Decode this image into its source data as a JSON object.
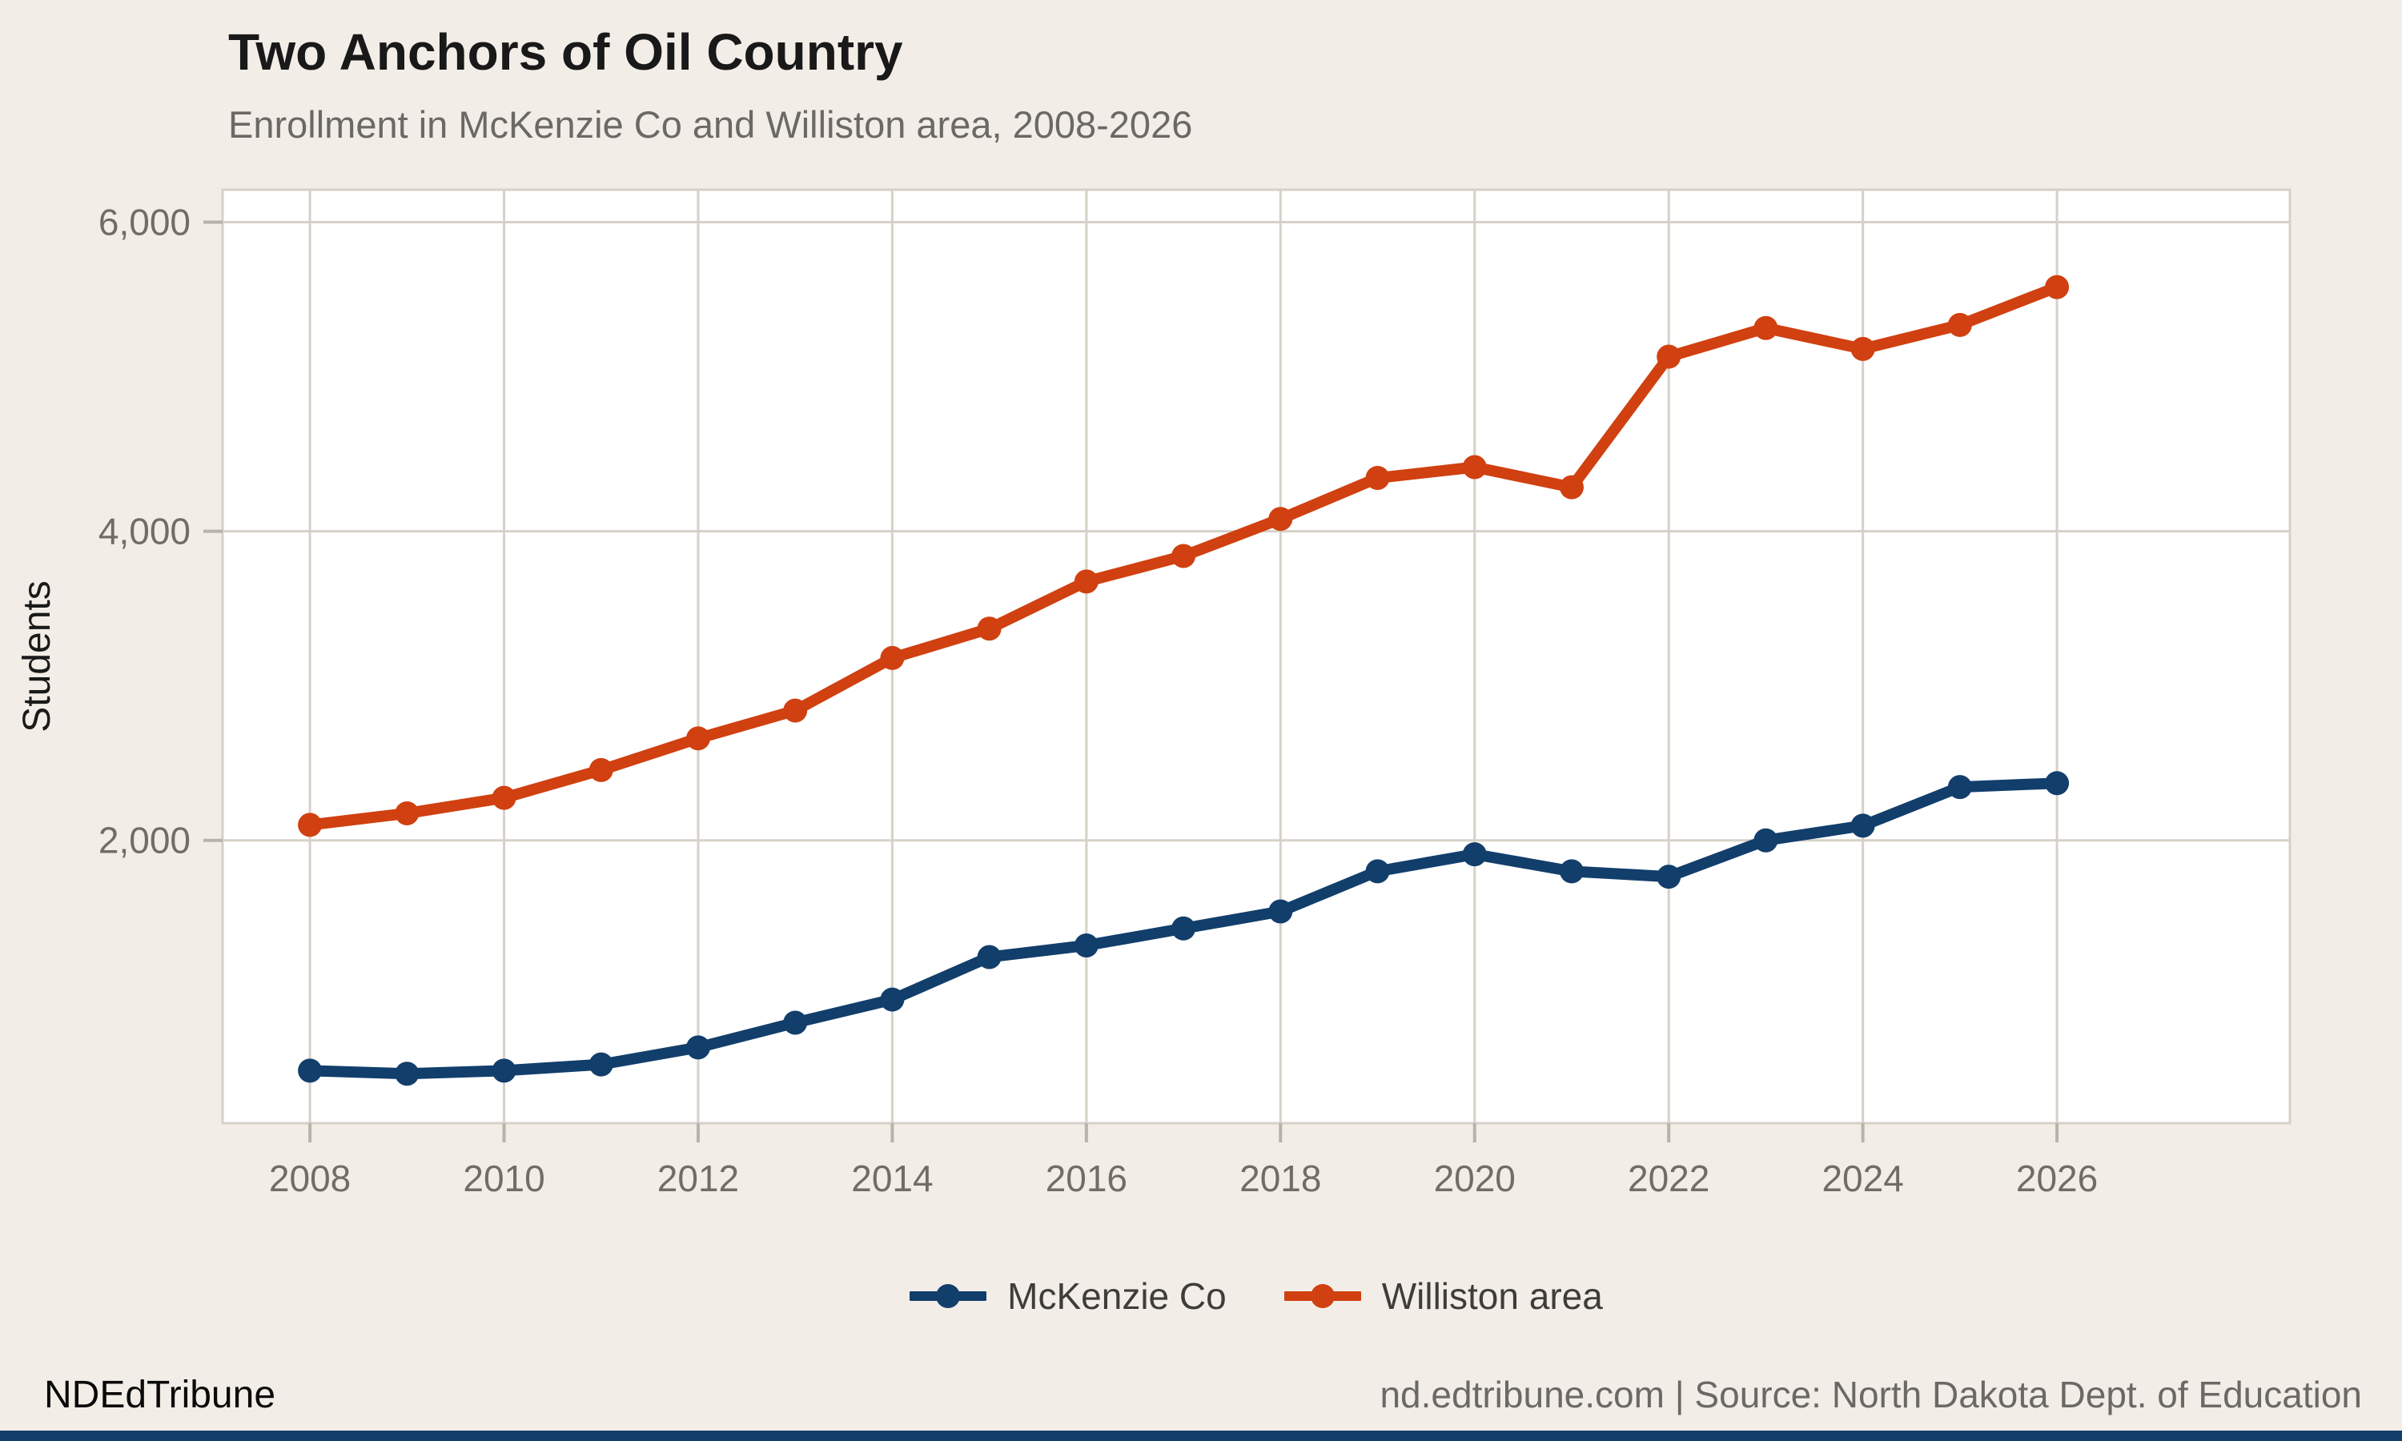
{
  "title": "Two Anchors of Oil Country",
  "subtitle": "Enrollment in McKenzie Co and Williston area, 2008-2026",
  "footer": {
    "brand": "NDEdTribune",
    "source": "nd.edtribune.com | Source: North Dakota Dept. of Education"
  },
  "colors": {
    "background": "#f2eee7",
    "panel": "#ffffff",
    "gridline": "#d6d1c8",
    "tick_text": "#716d66",
    "axis_title_text": "#1a1a1a",
    "mckenzie_blue": "#123e6b",
    "williston_red": "#d04010",
    "brand_bar": "#123e6b"
  },
  "chart_data": {
    "type": "line",
    "title": "Two Anchors of Oil Country",
    "subtitle": "Enrollment in McKenzie Co and Williston area, 2008-2026",
    "xlabel": "",
    "ylabel": "Students",
    "x": [
      2008,
      2009,
      2010,
      2011,
      2012,
      2013,
      2014,
      2015,
      2016,
      2017,
      2018,
      2019,
      2020,
      2021,
      2022,
      2023,
      2024,
      2025,
      2026
    ],
    "series": [
      {
        "name": "McKenzie Co",
        "color": "#123e6b",
        "values": [
          510,
          490,
          510,
          550,
          660,
          820,
          970,
          1245,
          1320,
          1430,
          1540,
          1800,
          1910,
          1800,
          1765,
          2000,
          2095,
          2345,
          2370
        ]
      },
      {
        "name": "Williston area",
        "color": "#d04010",
        "values": [
          2100,
          2175,
          2275,
          2455,
          2660,
          2840,
          3180,
          3370,
          3675,
          3840,
          4080,
          4345,
          4415,
          4285,
          5130,
          5315,
          5180,
          5335,
          5580
        ]
      }
    ],
    "x_ticks": [
      2008,
      2010,
      2012,
      2014,
      2016,
      2018,
      2020,
      2022,
      2024,
      2026
    ],
    "y_ticks": [
      2000,
      4000,
      6000
    ],
    "y_tick_labels": [
      "2,000",
      "4,000",
      "6,000"
    ],
    "ylim": [
      170,
      6210
    ],
    "xlim": [
      2007.1,
      2028.4
    ],
    "grid": true,
    "legend_position": "bottom"
  }
}
